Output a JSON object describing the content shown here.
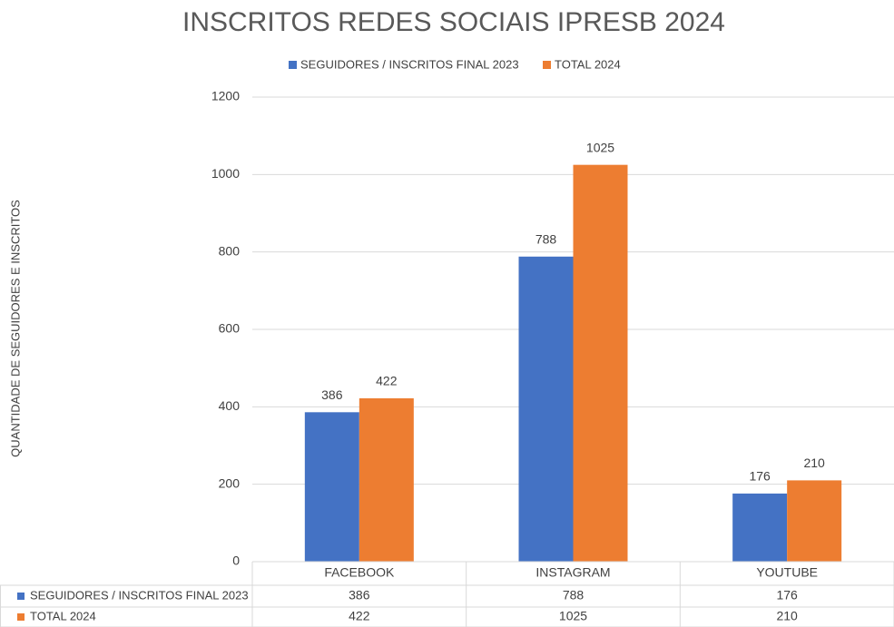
{
  "chart_data": {
    "type": "bar",
    "title": "INSCRITOS REDES SOCIAIS IPRESB 2024",
    "y_label": "QUANTIDADE DE SEGUIDORES E  INSCRITOS",
    "categories": [
      "FACEBOOK",
      "INSTAGRAM",
      "YOUTUBE"
    ],
    "series": [
      {
        "name": "SEGUIDORES / INSCRITOS FINAL 2023",
        "color": "#4472c4",
        "values": [
          386,
          788,
          176
        ]
      },
      {
        "name": "TOTAL 2024",
        "color": "#ed7d31",
        "values": [
          422,
          1025,
          210
        ]
      }
    ],
    "ylim": [
      0,
      1200
    ],
    "yticks": [
      0,
      200,
      400,
      600,
      800,
      1000,
      1200
    ],
    "grid": true,
    "legend": "top",
    "data_table": true
  }
}
